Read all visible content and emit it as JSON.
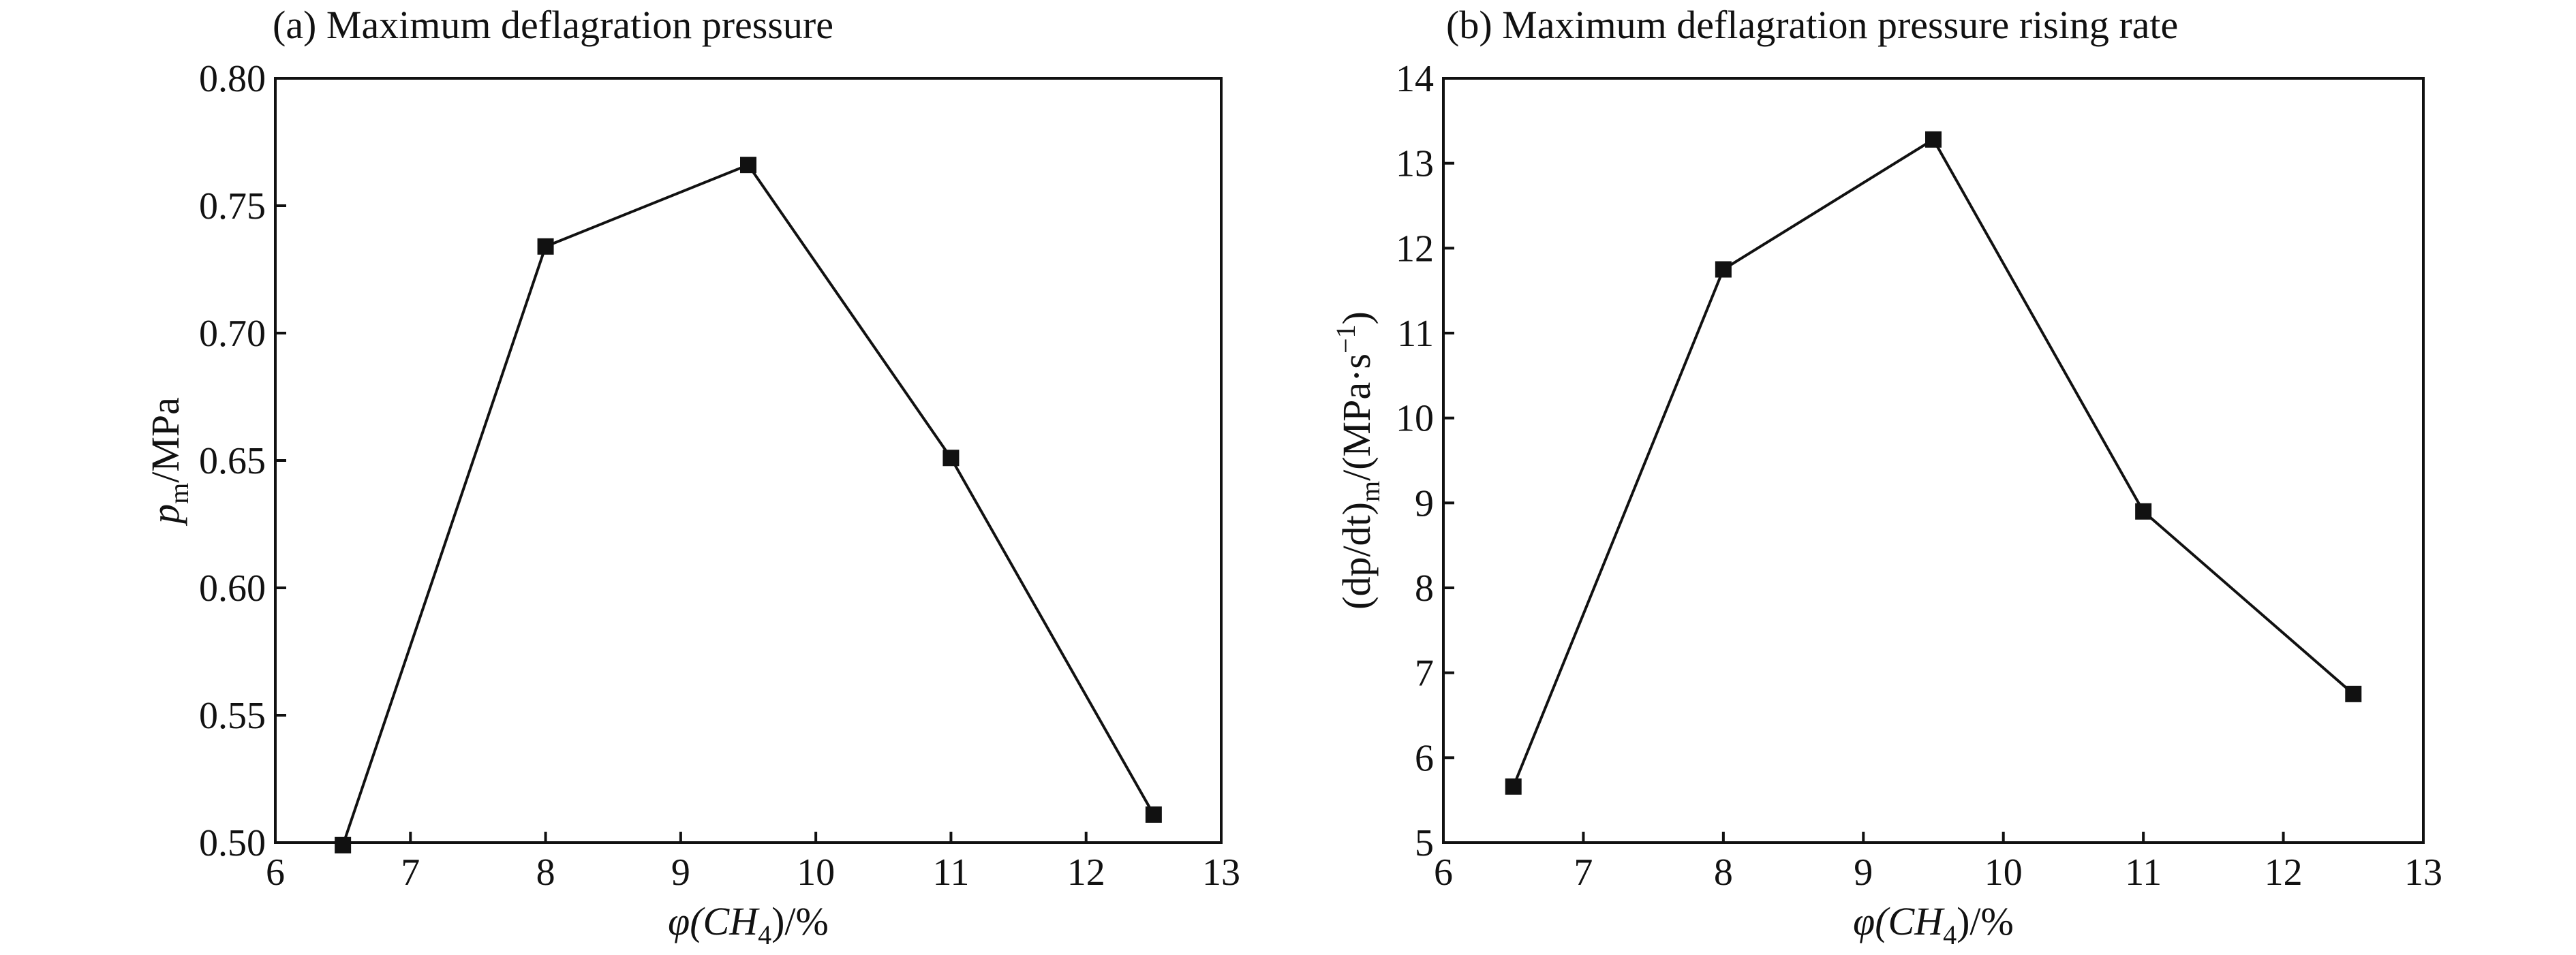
{
  "chart_data": [
    {
      "type": "line",
      "title": "(a) Maximum deflagration pressure",
      "xlabel": {
        "pre": "φ(CH",
        "sub": "4",
        "post": ")/%"
      },
      "ylabel": {
        "pre": "p",
        "sub": "m",
        "post": "/MPa"
      },
      "xlim": [
        6,
        13
      ],
      "ylim": [
        0.5,
        0.8
      ],
      "xticks": [
        6,
        7,
        8,
        9,
        10,
        11,
        12,
        13
      ],
      "yticks": [
        "0.50",
        "0.55",
        "0.60",
        "0.65",
        "0.70",
        "0.75",
        "0.80"
      ],
      "x": [
        6.5,
        8.0,
        9.5,
        11.0,
        12.5
      ],
      "y": [
        0.499,
        0.734,
        0.766,
        0.651,
        0.511
      ],
      "grid": false,
      "marker": "square"
    },
    {
      "type": "line",
      "title": "(b) Maximum deflagration pressure rising rate",
      "xlabel": {
        "pre": "φ(CH",
        "sub": "4",
        "post": ")/%"
      },
      "ylabel": {
        "pre": "(dp/dt)",
        "sub": "m",
        "post": "/(MPa·s",
        "sup": "−1",
        "end": ")"
      },
      "xlim": [
        6,
        13
      ],
      "ylim": [
        5,
        14
      ],
      "xticks": [
        6,
        7,
        8,
        9,
        10,
        11,
        12,
        13
      ],
      "yticks": [
        "5",
        "6",
        "7",
        "8",
        "9",
        "10",
        "11",
        "12",
        "13",
        "14"
      ],
      "x": [
        6.5,
        8.0,
        9.5,
        11.0,
        12.5
      ],
      "y": [
        5.66,
        11.75,
        13.28,
        8.9,
        6.75
      ],
      "grid": false,
      "marker": "square"
    }
  ],
  "colors": {
    "line": "#111111",
    "background": "#ffffff"
  }
}
